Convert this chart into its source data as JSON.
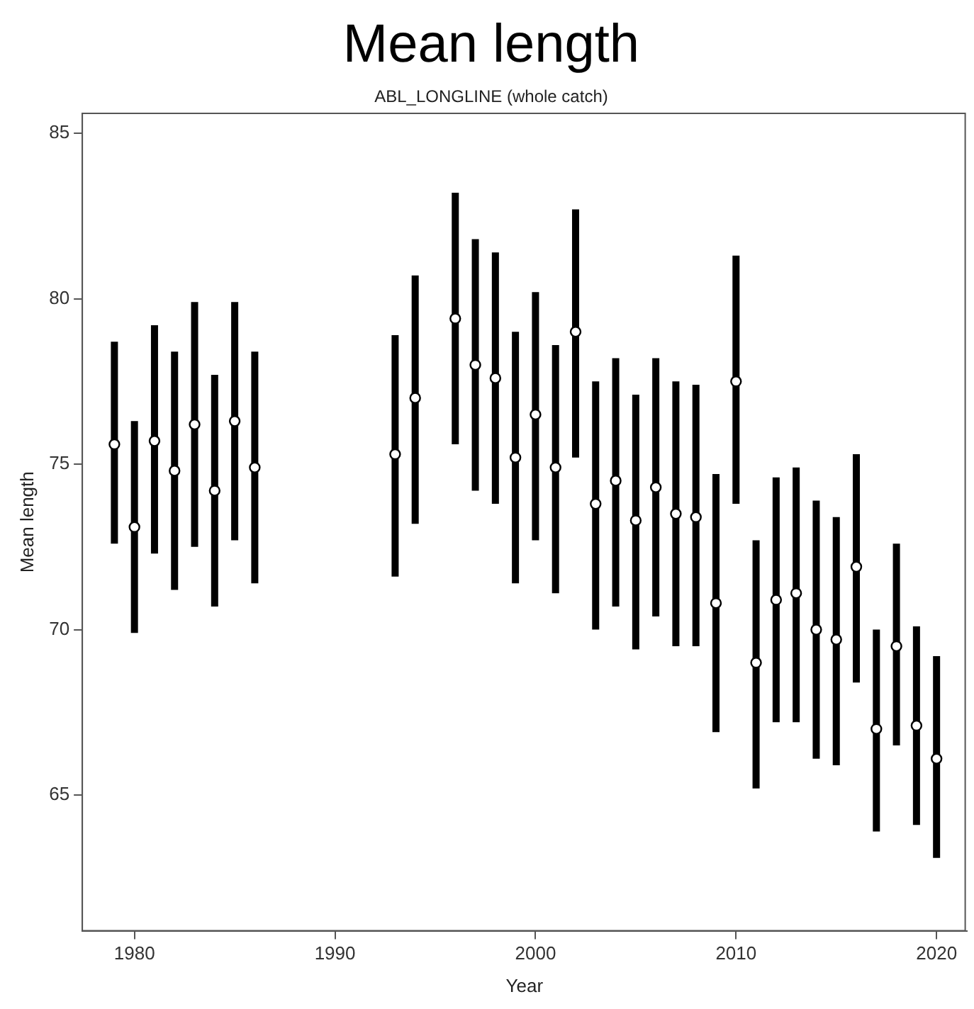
{
  "chart_data": {
    "type": "scatter",
    "title": "Mean length",
    "subtitle": "ABL_LONGLINE (whole catch)",
    "xlabel": "Year",
    "ylabel": "Mean length",
    "x": [
      1979,
      1980,
      1981,
      1982,
      1983,
      1984,
      1985,
      1986,
      1993,
      1994,
      1996,
      1997,
      1998,
      1999,
      2000,
      2001,
      2002,
      2003,
      2004,
      2005,
      2006,
      2007,
      2008,
      2009,
      2010,
      2011,
      2012,
      2013,
      2014,
      2015,
      2016,
      2017,
      2018,
      2019,
      2020
    ],
    "series": [
      {
        "color": "#000000",
        "values": [
          75.6,
          73.1,
          75.7,
          74.8,
          76.2,
          74.2,
          76.3,
          74.9,
          75.3,
          77.0,
          79.4,
          78.0,
          77.6,
          75.2,
          76.5,
          74.9,
          79.0,
          73.8,
          74.5,
          73.3,
          74.3,
          73.5,
          73.4,
          70.8,
          77.5,
          69.0,
          70.9,
          71.1,
          70.0,
          69.7,
          71.9,
          67.0,
          69.5,
          67.1,
          66.1
        ],
        "errors": [
          [
            72.6,
            78.7
          ],
          [
            69.9,
            76.3
          ],
          [
            72.3,
            79.2
          ],
          [
            71.2,
            78.4
          ],
          [
            72.5,
            79.9
          ],
          [
            70.7,
            77.7
          ],
          [
            72.7,
            79.9
          ],
          [
            71.4,
            78.4
          ],
          [
            71.6,
            78.9
          ],
          [
            73.2,
            80.7
          ],
          [
            75.6,
            83.2
          ],
          [
            74.2,
            81.8
          ],
          [
            73.8,
            81.4
          ],
          [
            71.4,
            79.0
          ],
          [
            72.7,
            80.2
          ],
          [
            71.1,
            78.6
          ],
          [
            75.2,
            82.7
          ],
          [
            70.0,
            77.5
          ],
          [
            70.7,
            78.2
          ],
          [
            69.4,
            77.1
          ],
          [
            70.4,
            78.2
          ],
          [
            69.5,
            77.5
          ],
          [
            69.5,
            77.4
          ],
          [
            66.9,
            74.7
          ],
          [
            73.8,
            81.3
          ],
          [
            65.2,
            72.7
          ],
          [
            67.2,
            74.6
          ],
          [
            67.2,
            74.9
          ],
          [
            66.1,
            73.9
          ],
          [
            65.9,
            73.4
          ],
          [
            68.4,
            75.3
          ],
          [
            63.9,
            70.0
          ],
          [
            66.5,
            72.6
          ],
          [
            64.1,
            70.1
          ],
          [
            63.1,
            69.2
          ]
        ]
      }
    ],
    "xlim": [
      1977.4,
      2021.5
    ],
    "xticks": [
      1980,
      1990,
      2000,
      2010,
      2020
    ],
    "ylim": [
      60.9,
      85.6
    ],
    "yticks": [
      65,
      70,
      75,
      80,
      85
    ],
    "marker": "circle",
    "grid": false,
    "legend": false
  }
}
